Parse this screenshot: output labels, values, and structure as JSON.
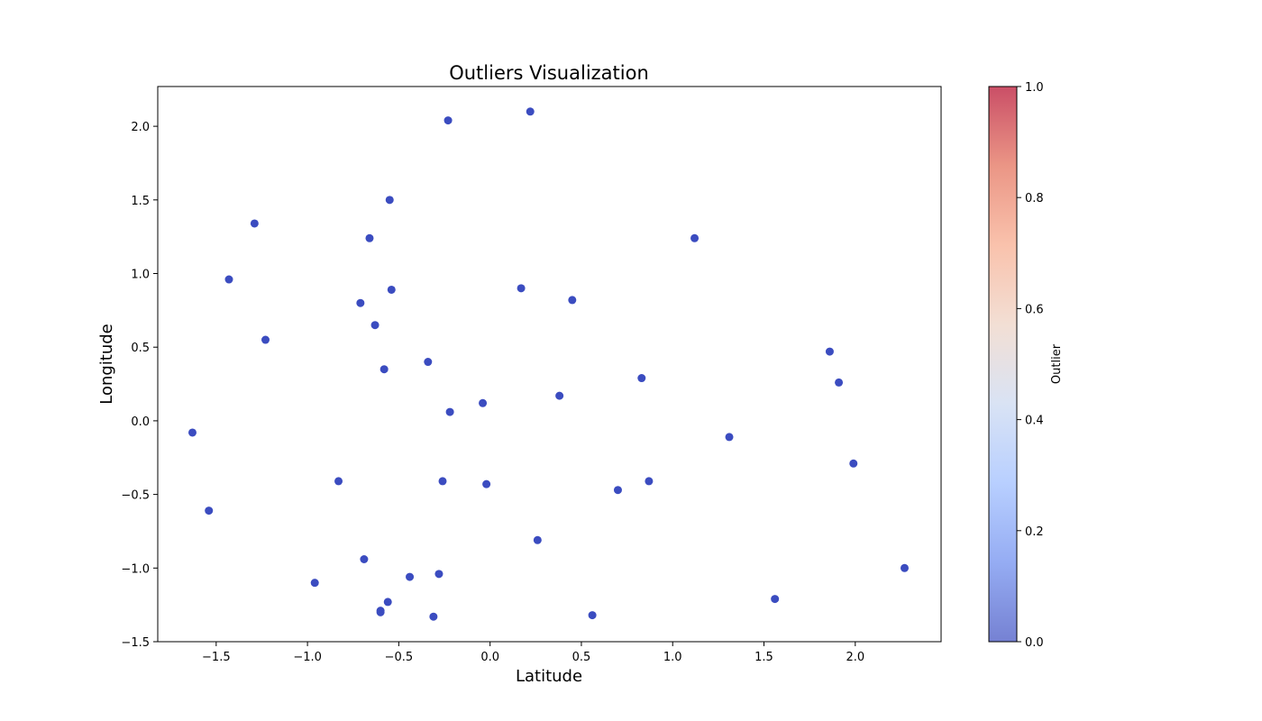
{
  "chart_data": {
    "type": "scatter",
    "title": "Outliers Visualization",
    "xlabel": "Latitude",
    "ylabel": "Longitude",
    "xlim": [
      -1.82,
      2.47
    ],
    "ylim": [
      -1.5,
      2.27
    ],
    "xticks": [
      -1.5,
      -1.0,
      -0.5,
      0.0,
      0.5,
      1.0,
      1.5,
      2.0
    ],
    "xtick_labels": [
      "−1.5",
      "−1.0",
      "−0.5",
      "0.0",
      "0.5",
      "1.0",
      "1.5",
      "2.0"
    ],
    "yticks": [
      -1.5,
      -1.0,
      -0.5,
      0.0,
      0.5,
      1.0,
      1.5,
      2.0
    ],
    "ytick_labels": [
      "−1.5",
      "−1.0",
      "−0.5",
      "0.0",
      "0.5",
      "1.0",
      "1.5",
      "2.0"
    ],
    "grid": false,
    "point_color": "#3b4cc0",
    "colorbar": {
      "label": "Outlier",
      "range": [
        0.0,
        1.0
      ],
      "ticks": [
        0.0,
        0.2,
        0.4,
        0.6,
        0.8,
        1.0
      ],
      "tick_labels": [
        "0.0",
        "0.2",
        "0.4",
        "0.6",
        "0.8",
        "1.0"
      ],
      "colormap": "coolwarm",
      "colormap_stops": [
        "#3b4cc0",
        "#6889ee",
        "#9abbff",
        "#c9d7f0",
        "#edd1c2",
        "#f7a889",
        "#e26952",
        "#b40426"
      ]
    },
    "points": [
      {
        "x": 0.22,
        "y": 2.1,
        "outlier": 0
      },
      {
        "x": -0.23,
        "y": 2.04,
        "outlier": 0
      },
      {
        "x": -0.55,
        "y": 1.5,
        "outlier": 0
      },
      {
        "x": -1.29,
        "y": 1.34,
        "outlier": 0
      },
      {
        "x": -0.66,
        "y": 1.24,
        "outlier": 0
      },
      {
        "x": 1.12,
        "y": 1.24,
        "outlier": 0
      },
      {
        "x": -1.43,
        "y": 0.96,
        "outlier": 0
      },
      {
        "x": 0.17,
        "y": 0.9,
        "outlier": 0
      },
      {
        "x": -0.54,
        "y": 0.89,
        "outlier": 0
      },
      {
        "x": 0.45,
        "y": 0.82,
        "outlier": 0
      },
      {
        "x": -0.71,
        "y": 0.8,
        "outlier": 0
      },
      {
        "x": -0.63,
        "y": 0.65,
        "outlier": 0
      },
      {
        "x": -1.23,
        "y": 0.55,
        "outlier": 0
      },
      {
        "x": 1.86,
        "y": 0.47,
        "outlier": 0
      },
      {
        "x": -0.34,
        "y": 0.4,
        "outlier": 0
      },
      {
        "x": -0.58,
        "y": 0.35,
        "outlier": 0
      },
      {
        "x": 0.83,
        "y": 0.29,
        "outlier": 0
      },
      {
        "x": 1.91,
        "y": 0.26,
        "outlier": 0
      },
      {
        "x": 0.38,
        "y": 0.17,
        "outlier": 0
      },
      {
        "x": -0.04,
        "y": 0.12,
        "outlier": 0
      },
      {
        "x": -0.22,
        "y": 0.06,
        "outlier": 0
      },
      {
        "x": -1.63,
        "y": -0.08,
        "outlier": 0
      },
      {
        "x": 1.31,
        "y": -0.11,
        "outlier": 0
      },
      {
        "x": 1.99,
        "y": -0.29,
        "outlier": 0
      },
      {
        "x": -0.83,
        "y": -0.41,
        "outlier": 0
      },
      {
        "x": -0.26,
        "y": -0.41,
        "outlier": 0
      },
      {
        "x": 0.87,
        "y": -0.41,
        "outlier": 0
      },
      {
        "x": -0.02,
        "y": -0.43,
        "outlier": 0
      },
      {
        "x": 0.7,
        "y": -0.47,
        "outlier": 0
      },
      {
        "x": -1.54,
        "y": -0.61,
        "outlier": 0
      },
      {
        "x": 0.26,
        "y": -0.81,
        "outlier": 0
      },
      {
        "x": -0.69,
        "y": -0.94,
        "outlier": 0
      },
      {
        "x": 2.27,
        "y": -1.0,
        "outlier": 0
      },
      {
        "x": -0.28,
        "y": -1.04,
        "outlier": 0
      },
      {
        "x": -0.44,
        "y": -1.06,
        "outlier": 0
      },
      {
        "x": -0.96,
        "y": -1.1,
        "outlier": 0
      },
      {
        "x": 1.56,
        "y": -1.21,
        "outlier": 0
      },
      {
        "x": -0.56,
        "y": -1.23,
        "outlier": 0
      },
      {
        "x": -0.6,
        "y": -1.29,
        "outlier": 0
      },
      {
        "x": -0.6,
        "y": -1.3,
        "outlier": 0
      },
      {
        "x": 0.56,
        "y": -1.32,
        "outlier": 0
      },
      {
        "x": -0.31,
        "y": -1.33,
        "outlier": 0
      }
    ]
  }
}
